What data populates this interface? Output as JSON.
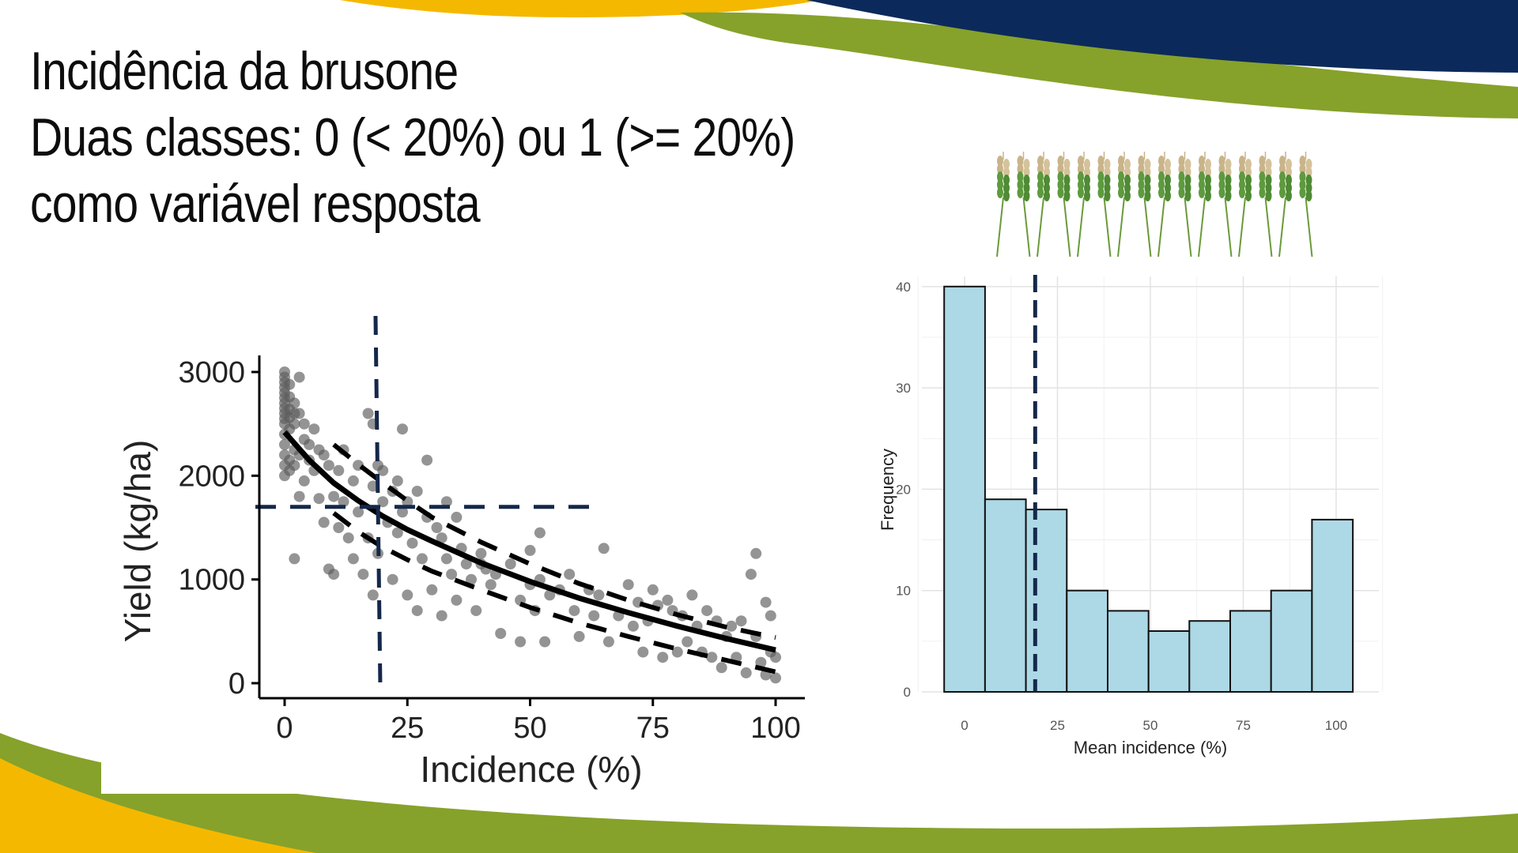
{
  "slide": {
    "title_lines": [
      "Incidência da brusone",
      "Duas classes: 0 (< 20%) ou 1 (>= 20%)",
      "como variável resposta"
    ]
  },
  "colors": {
    "navy": "#0b2a5b",
    "green": "#86a22a",
    "yellow": "#f5b800",
    "hist_fill": "#add8e6",
    "threshold_line": "#15284a",
    "points": "#5a5a5a"
  },
  "decor": {
    "wheat_icon": "wheat-illustration-icon"
  },
  "chart_data": [
    {
      "type": "scatter",
      "title": "",
      "xlabel": "Incidence (%)",
      "ylabel": "Yield (kg/ha)",
      "xlim": [
        -5,
        103
      ],
      "ylim": [
        -120,
        3150
      ],
      "xticks": [
        0,
        25,
        50,
        75,
        100
      ],
      "yticks": [
        0,
        1000,
        2000,
        3000
      ],
      "grid": false,
      "threshold": {
        "x": 19,
        "y": 1700
      },
      "fit_curve": {
        "x": [
          0,
          5,
          10,
          15,
          20,
          25,
          30,
          40,
          50,
          60,
          70,
          80,
          90,
          100
        ],
        "y": [
          2420,
          2150,
          1930,
          1760,
          1610,
          1480,
          1370,
          1160,
          980,
          820,
          680,
          550,
          430,
          320
        ]
      },
      "confidence_upper": {
        "x": [
          10,
          15,
          20,
          25,
          30,
          40,
          50,
          60,
          70,
          80,
          90,
          100
        ],
        "y": [
          2300,
          2110,
          1930,
          1760,
          1600,
          1360,
          1150,
          960,
          800,
          660,
          540,
          440
        ]
      },
      "confidence_lower": {
        "x": [
          10,
          15,
          20,
          25,
          30,
          40,
          50,
          60,
          70,
          80,
          90,
          100
        ],
        "y": [
          1640,
          1460,
          1310,
          1190,
          1080,
          900,
          730,
          580,
          450,
          330,
          220,
          110
        ]
      },
      "points": [
        [
          0,
          2950
        ],
        [
          0,
          2850
        ],
        [
          0,
          2800
        ],
        [
          0,
          2750
        ],
        [
          0,
          2700
        ],
        [
          0,
          2650
        ],
        [
          0,
          2600
        ],
        [
          0,
          2550
        ],
        [
          0,
          2500
        ],
        [
          0,
          2400
        ],
        [
          0,
          2300
        ],
        [
          0,
          2200
        ],
        [
          0,
          2100
        ],
        [
          0,
          2000
        ],
        [
          0,
          3000
        ],
        [
          0,
          2900
        ],
        [
          1,
          2880
        ],
        [
          1,
          2760
        ],
        [
          1,
          2640
        ],
        [
          1,
          2560
        ],
        [
          1,
          2450
        ],
        [
          1,
          2150
        ],
        [
          1,
          2050
        ],
        [
          2,
          2700
        ],
        [
          2,
          2600
        ],
        [
          2,
          2500
        ],
        [
          2,
          2250
        ],
        [
          2,
          2100
        ],
        [
          2,
          1200
        ],
        [
          3,
          2950
        ],
        [
          3,
          2600
        ],
        [
          3,
          2200
        ],
        [
          3,
          1800
        ],
        [
          4,
          2500
        ],
        [
          4,
          2350
        ],
        [
          4,
          1950
        ],
        [
          5,
          2300
        ],
        [
          5,
          2150
        ],
        [
          6,
          2450
        ],
        [
          6,
          2050
        ],
        [
          7,
          2250
        ],
        [
          7,
          1780
        ],
        [
          8,
          2200
        ],
        [
          8,
          1550
        ],
        [
          9,
          2100
        ],
        [
          9,
          1100
        ],
        [
          10,
          1800
        ],
        [
          10,
          1050
        ],
        [
          11,
          2050
        ],
        [
          11,
          1500
        ],
        [
          12,
          2250
        ],
        [
          12,
          1750
        ],
        [
          13,
          1400
        ],
        [
          14,
          1950
        ],
        [
          14,
          1200
        ],
        [
          15,
          2100
        ],
        [
          15,
          1650
        ],
        [
          16,
          1050
        ],
        [
          17,
          2600
        ],
        [
          17,
          1400
        ],
        [
          18,
          2500
        ],
        [
          18,
          1900
        ],
        [
          18,
          850
        ],
        [
          19,
          2100
        ],
        [
          19,
          1250
        ],
        [
          20,
          2050
        ],
        [
          20,
          1750
        ],
        [
          21,
          1550
        ],
        [
          22,
          1850
        ],
        [
          22,
          1000
        ],
        [
          23,
          1950
        ],
        [
          23,
          1450
        ],
        [
          24,
          2450
        ],
        [
          24,
          1650
        ],
        [
          25,
          1750
        ],
        [
          25,
          850
        ],
        [
          26,
          1350
        ],
        [
          27,
          1850
        ],
        [
          27,
          700
        ],
        [
          28,
          1200
        ],
        [
          29,
          2150
        ],
        [
          29,
          1600
        ],
        [
          30,
          900
        ],
        [
          31,
          1500
        ],
        [
          32,
          1400
        ],
        [
          32,
          650
        ],
        [
          33,
          1750
        ],
        [
          33,
          1200
        ],
        [
          34,
          1050
        ],
        [
          35,
          1600
        ],
        [
          35,
          800
        ],
        [
          36,
          1300
        ],
        [
          37,
          1150
        ],
        [
          38,
          1000
        ],
        [
          39,
          700
        ],
        [
          40,
          1250
        ],
        [
          40,
          1150
        ],
        [
          41,
          1100
        ],
        [
          42,
          950
        ],
        [
          43,
          1050
        ],
        [
          44,
          480
        ],
        [
          46,
          1150
        ],
        [
          48,
          800
        ],
        [
          48,
          400
        ],
        [
          50,
          1280
        ],
        [
          50,
          950
        ],
        [
          51,
          700
        ],
        [
          52,
          1450
        ],
        [
          52,
          1000
        ],
        [
          53,
          400
        ],
        [
          54,
          850
        ],
        [
          56,
          900
        ],
        [
          58,
          1050
        ],
        [
          59,
          700
        ],
        [
          60,
          450
        ],
        [
          62,
          900
        ],
        [
          63,
          650
        ],
        [
          64,
          850
        ],
        [
          65,
          1300
        ],
        [
          66,
          400
        ],
        [
          68,
          650
        ],
        [
          70,
          950
        ],
        [
          71,
          550
        ],
        [
          72,
          780
        ],
        [
          73,
          300
        ],
        [
          74,
          600
        ],
        [
          75,
          900
        ],
        [
          76,
          750
        ],
        [
          77,
          250
        ],
        [
          78,
          800
        ],
        [
          79,
          700
        ],
        [
          80,
          300
        ],
        [
          81,
          650
        ],
        [
          82,
          400
        ],
        [
          83,
          850
        ],
        [
          84,
          550
        ],
        [
          85,
          300
        ],
        [
          86,
          700
        ],
        [
          87,
          250
        ],
        [
          88,
          600
        ],
        [
          89,
          150
        ],
        [
          90,
          450
        ],
        [
          91,
          550
        ],
        [
          92,
          250
        ],
        [
          93,
          600
        ],
        [
          94,
          100
        ],
        [
          95,
          1050
        ],
        [
          96,
          1250
        ],
        [
          96,
          450
        ],
        [
          97,
          200
        ],
        [
          98,
          780
        ],
        [
          98,
          80
        ],
        [
          99,
          650
        ],
        [
          99,
          300
        ],
        [
          100,
          50
        ],
        [
          100,
          250
        ]
      ]
    },
    {
      "type": "bar",
      "title": "",
      "xlabel": "Mean incidence (%)",
      "ylabel": "Frequency",
      "bin_edges": [
        -5.5,
        5.5,
        16.5,
        27.5,
        38.5,
        49.5,
        60.5,
        71.5,
        82.5,
        93.5,
        104.5
      ],
      "values": [
        40,
        19,
        18,
        10,
        8,
        6,
        7,
        8,
        10,
        17
      ],
      "xticks": [
        0,
        25,
        50,
        75,
        100
      ],
      "yticks": [
        0,
        10,
        20,
        30,
        40
      ],
      "xlim": [
        -11.5,
        111.5
      ],
      "ylim": [
        0,
        41
      ],
      "grid": true,
      "threshold_x": 19
    }
  ]
}
